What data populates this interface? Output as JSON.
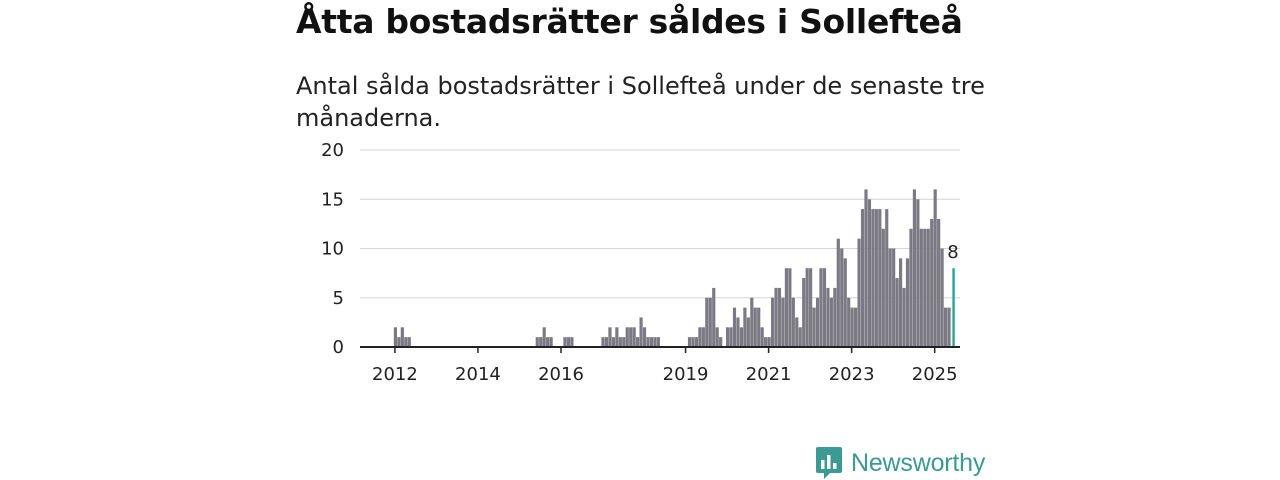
{
  "title": "Åtta bostadsrätter såldes i Sollefteå",
  "subtitle": "Antal sålda bostadsrätter i Sollefteå under de senaste tre månaderna.",
  "brand": {
    "name": "Newsworthy",
    "color": "#3c9a94"
  },
  "chart_data": {
    "type": "bar",
    "ylim": [
      0,
      20
    ],
    "yticks": [
      0,
      5,
      10,
      15,
      20
    ],
    "xticks": [
      "2012",
      "2014",
      "2016",
      "2019",
      "2021",
      "2023",
      "2025"
    ],
    "x_start": "2011-11",
    "grid": true,
    "bar_color": "#7b7a84",
    "highlight_color": "#2aa39a",
    "highlight_label": "8",
    "values": [
      0,
      0,
      2,
      1,
      2,
      1,
      1,
      0,
      0,
      0,
      0,
      0,
      0,
      0,
      0,
      0,
      0,
      0,
      0,
      0,
      0,
      0,
      0,
      0,
      0,
      0,
      0,
      0,
      0,
      0,
      0,
      0,
      0,
      0,
      0,
      0,
      0,
      0,
      0,
      0,
      0,
      0,
      0,
      1,
      1,
      2,
      1,
      1,
      0,
      0,
      0,
      1,
      1,
      1,
      0,
      0,
      0,
      0,
      0,
      0,
      0,
      0,
      1,
      1,
      2,
      1,
      2,
      1,
      1,
      2,
      2,
      2,
      1,
      3,
      2,
      1,
      1,
      1,
      1,
      0,
      0,
      0,
      0,
      0,
      0,
      0,
      0,
      1,
      1,
      1,
      2,
      2,
      5,
      5,
      6,
      2,
      1,
      0,
      2,
      2,
      4,
      3,
      2,
      4,
      3,
      5,
      4,
      4,
      2,
      1,
      1,
      5,
      6,
      6,
      5,
      8,
      8,
      5,
      3,
      2,
      7,
      8,
      8,
      4,
      5,
      8,
      8,
      6,
      5,
      6,
      11,
      10,
      9,
      5,
      4,
      4,
      11,
      14,
      16,
      15,
      14,
      14,
      14,
      12,
      14,
      10,
      10,
      7,
      9,
      6,
      9,
      12,
      16,
      15,
      12,
      12,
      12,
      13,
      16,
      13,
      10,
      4,
      4,
      8
    ]
  }
}
